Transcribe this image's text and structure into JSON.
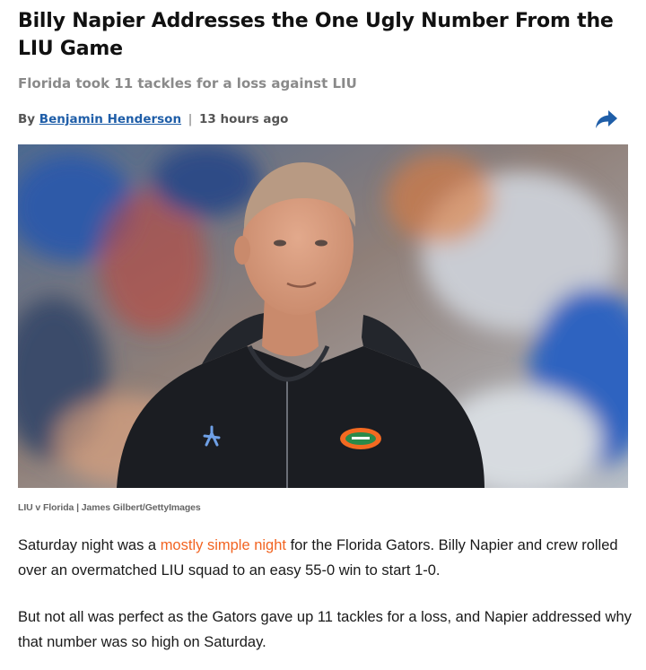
{
  "article": {
    "headline": "Billy Napier Addresses the One Ugly Number From the LIU Game",
    "subhead": "Florida took 11 tackles for a loss against LIU",
    "byline": {
      "prefix": "By",
      "author": "Benjamin Henderson",
      "separator": "|",
      "time": "13 hours ago"
    },
    "share_icon": "share-arrow-icon",
    "image_caption": "LIU v Florida | James Gilbert/GettyImages",
    "paragraphs": [
      {
        "before": "Saturday night was a ",
        "link": "mostly simple night",
        "after": " for the Florida Gators. Billy Napier and crew rolled over an overmatched LIU squad to an easy 55-0 win to start 1-0."
      },
      {
        "text": "But not all was perfect as the Gators gave up 11 tackles for a loss, and Napier addressed why that number was so high on Saturday."
      }
    ]
  },
  "colors": {
    "link_author": "#1f5ea8",
    "link_inline": "#f26422",
    "share_icon": "#1f5ea8",
    "subhead": "#8a8a8a"
  }
}
